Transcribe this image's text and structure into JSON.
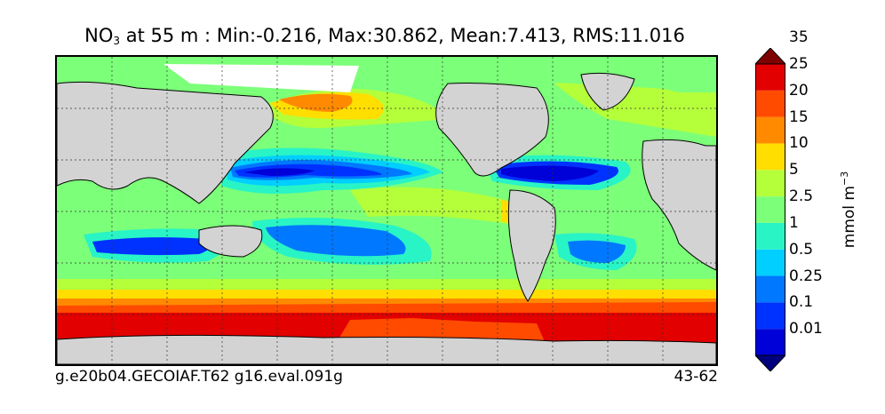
{
  "title": {
    "species": "NO",
    "species_sub": "3",
    "rest": " at 55 m : Min:-0.216, Max:30.862, Mean:7.413, RMS:11.016"
  },
  "footer": {
    "left": "g.e20b04.GECOIAF.T62 g16.eval.091g",
    "right": "43-62"
  },
  "colorbar": {
    "units_main": "mmol m",
    "units_sup": "−3",
    "levels": [
      "0.01",
      "0.1",
      "0.25",
      "0.5",
      "1",
      "2.5",
      "5",
      "10",
      "15",
      "20",
      "25",
      "35"
    ],
    "colors": [
      "#00007f",
      "#0000d8",
      "#0032ff",
      "#0078ff",
      "#00cfff",
      "#28f4c6",
      "#7cff79",
      "#b4ff3a",
      "#ffde00",
      "#ff8a00",
      "#ff4b00",
      "#e20000",
      "#7f0000"
    ]
  },
  "map": {
    "land_color": "#d3d3d3",
    "fill_value_color": "#ffffff",
    "grid": true,
    "coastlines": true
  }
}
